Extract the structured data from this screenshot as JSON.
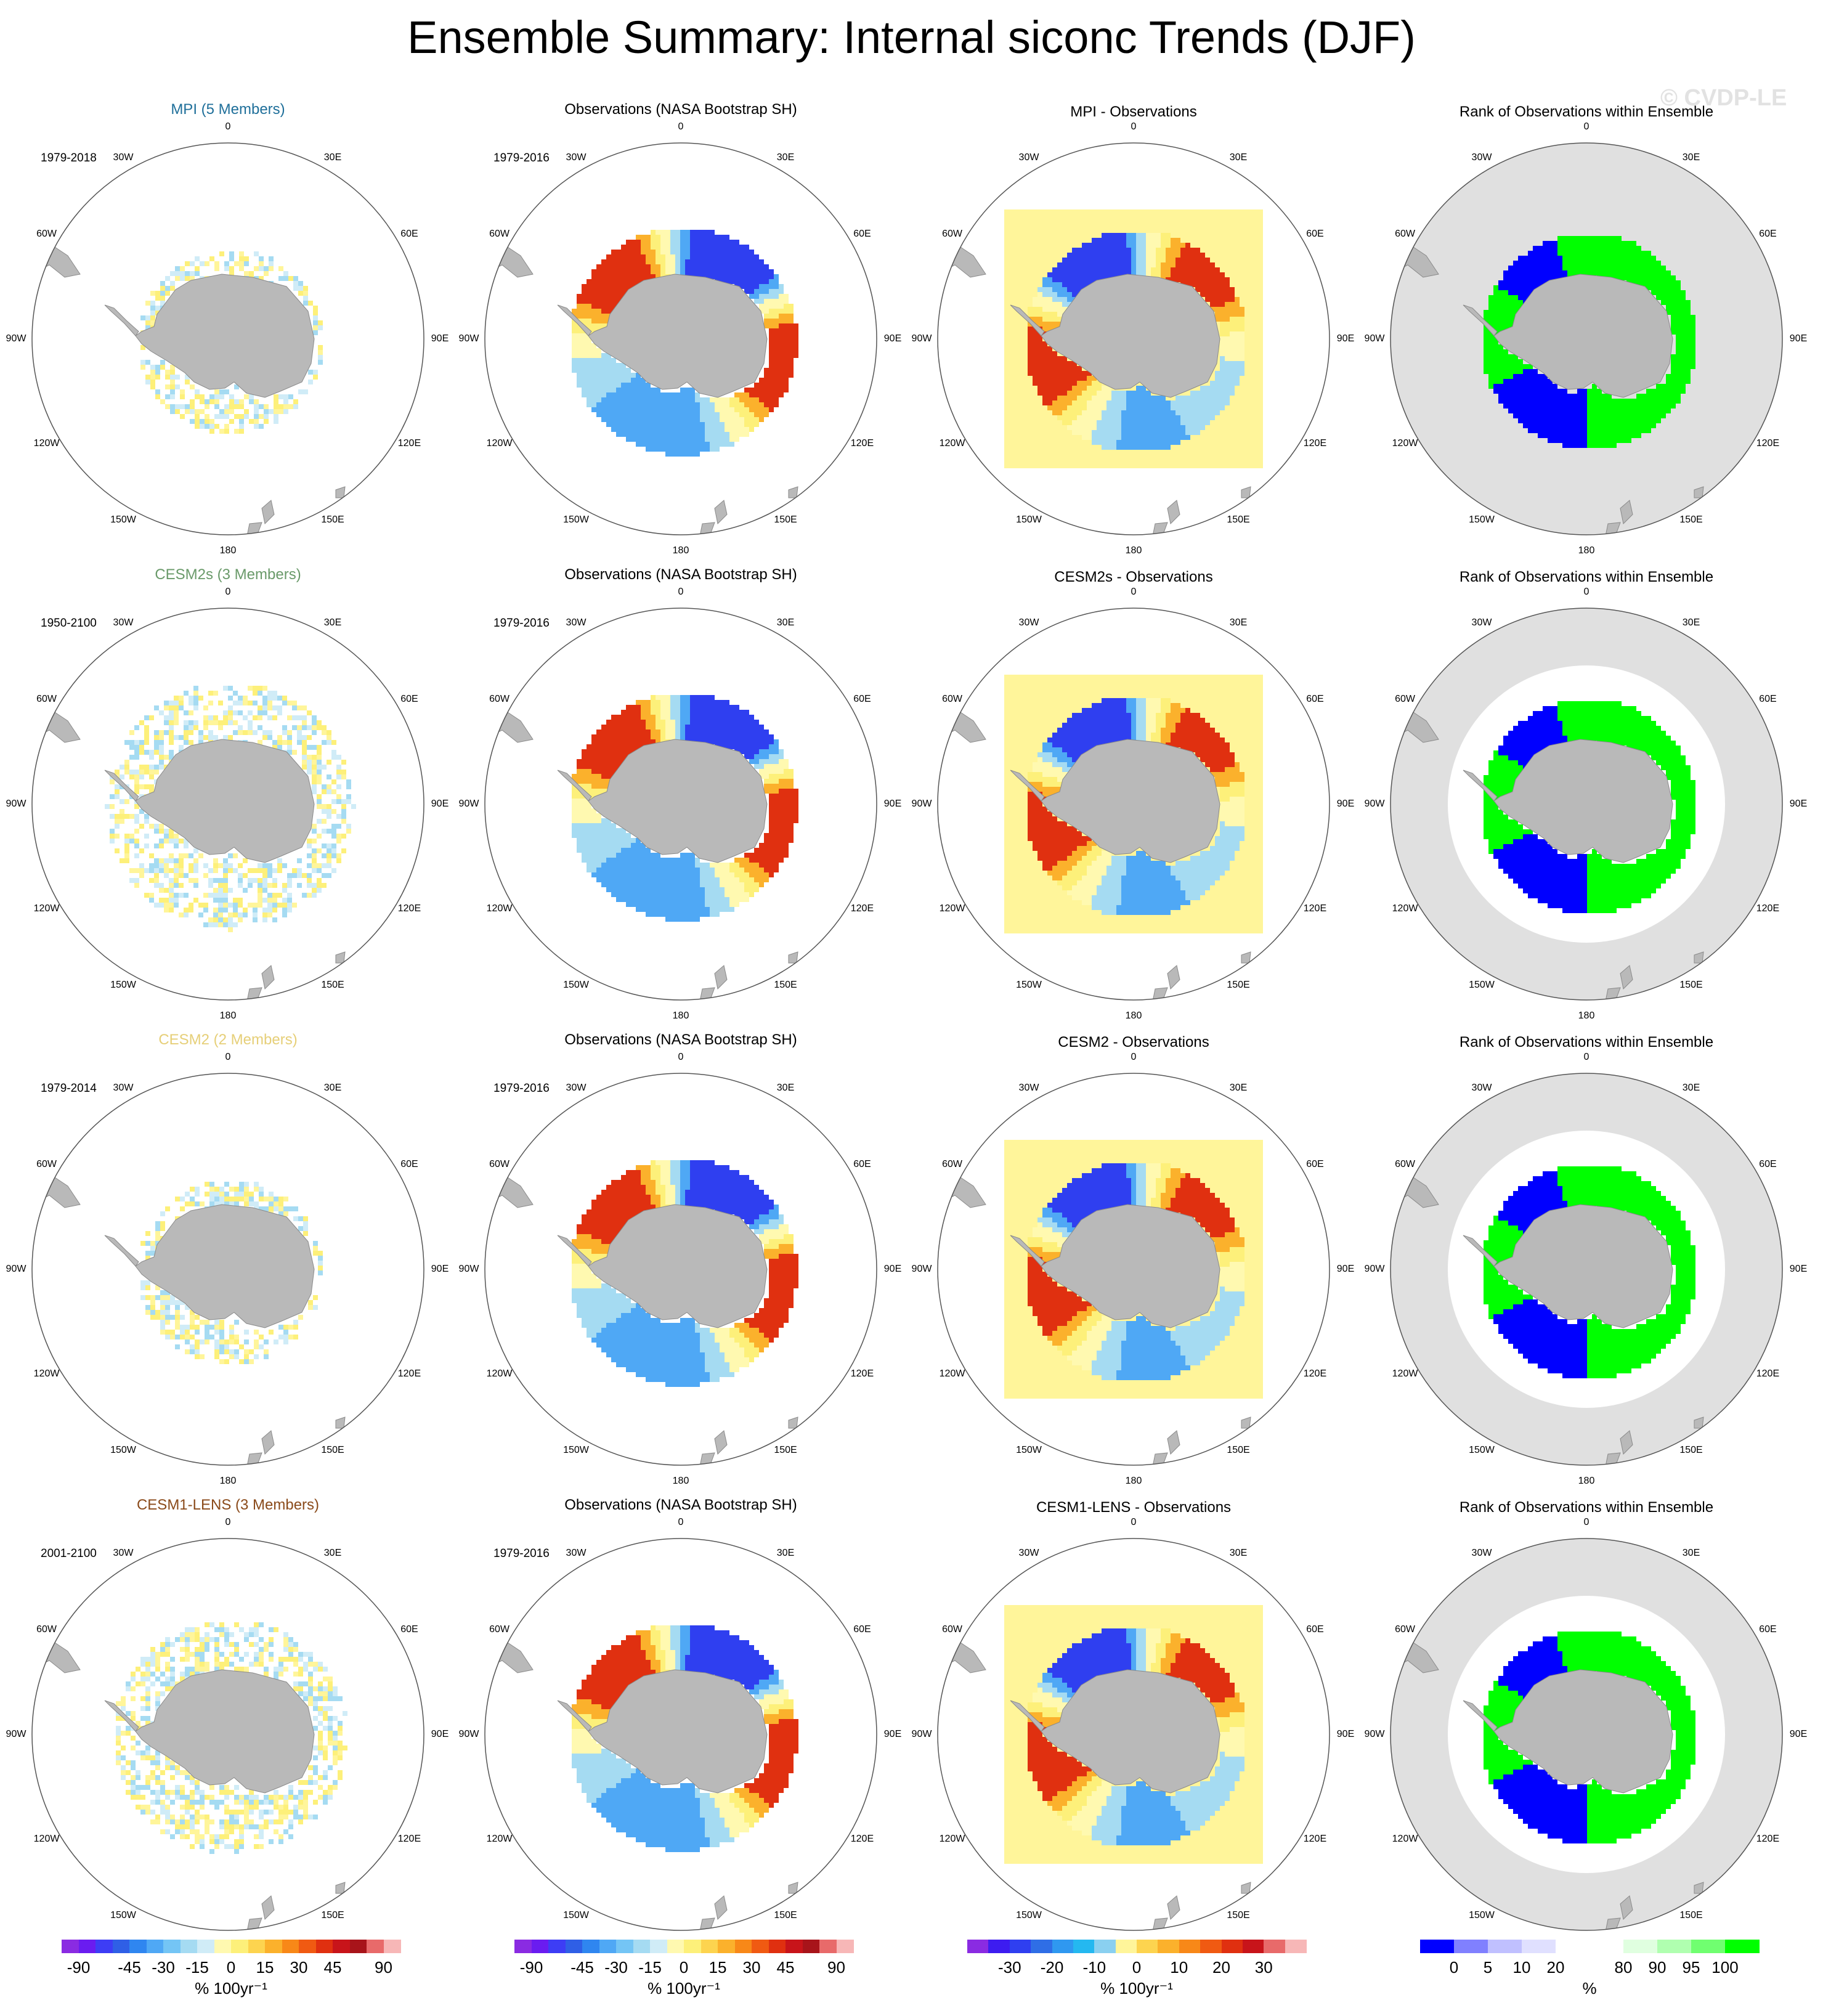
{
  "title": "Ensemble Summary: Internal siconc Trends (DJF)",
  "watermark": "© CVDP-LE",
  "lon_labels": [
    "0",
    "30E",
    "60E",
    "90E",
    "120E",
    "150E",
    "180",
    "150W",
    "120W",
    "90W",
    "60W",
    "30W"
  ],
  "colors": {
    "land": "#b9b9b9",
    "ocean_gray": "#e0e0e0",
    "rank_low": "#0000ff",
    "rank_high": "#00ff00",
    "rank_mid": "#ffffff",
    "diff_background": "#fff59a"
  },
  "rows": [
    {
      "model_title": "MPI (5 Members)",
      "model_color": "#1f6f9a",
      "model_period": "1979-2018",
      "obs_title": "Observations (NASA Bootstrap SH)",
      "obs_period": "1979-2016",
      "diff_title": "MPI - Observations",
      "rank_title": "Rank of Observations within Ensemble"
    },
    {
      "model_title": "CESM2s (3 Members)",
      "model_color": "#6a9a6a",
      "model_period": "1950-2100",
      "obs_title": "Observations (NASA Bootstrap SH)",
      "obs_period": "1979-2016",
      "diff_title": "CESM2s - Observations",
      "rank_title": "Rank of Observations within Ensemble"
    },
    {
      "model_title": "CESM2 (2 Members)",
      "model_color": "#e6cf78",
      "model_period": "1979-2014",
      "obs_title": "Observations (NASA Bootstrap SH)",
      "obs_period": "1979-2016",
      "diff_title": "CESM2 - Observations",
      "rank_title": "Rank of Observations within Ensemble"
    },
    {
      "model_title": "CESM1-LENS (3 Members)",
      "model_color": "#8a4a1a",
      "model_period": "2001-2100",
      "obs_title": "Observations (NASA Bootstrap SH)",
      "obs_period": "1979-2016",
      "diff_title": "CESM1-LENS - Observations",
      "rank_title": "Rank of Observations within Ensemble"
    }
  ],
  "colorbars": [
    {
      "name": "model-trend",
      "colors": [
        "#8a2be2",
        "#6a1cf0",
        "#3d3df5",
        "#2f5fe6",
        "#2f86f0",
        "#4fa8f5",
        "#74c5f5",
        "#a5dbf2",
        "#d0ecf7",
        "#fff9b0",
        "#fdf07a",
        "#fdd44f",
        "#fbb12c",
        "#f88818",
        "#f05a12",
        "#e03010",
        "#c8141a",
        "#a8141a",
        "#e86a6a",
        "#f7b7b7"
      ],
      "tick_labels": [
        "-90",
        "-45",
        "-30",
        "-15",
        "0",
        "15",
        "30",
        "45",
        "90"
      ],
      "tick_positions": [
        1,
        4,
        6,
        8,
        10,
        12,
        14,
        16,
        19
      ],
      "unit": "% 100yr⁻¹"
    },
    {
      "name": "obs-trend",
      "colors": [
        "#8a2be2",
        "#6a1cf0",
        "#3d3df5",
        "#2f5fe6",
        "#2f86f0",
        "#4fa8f5",
        "#74c5f5",
        "#a5dbf2",
        "#d0ecf7",
        "#fff9b0",
        "#fdf07a",
        "#fdd44f",
        "#fbb12c",
        "#f88818",
        "#f05a12",
        "#e03010",
        "#c8141a",
        "#a8141a",
        "#e86a6a",
        "#f7b7b7"
      ],
      "tick_labels": [
        "-90",
        "-45",
        "-30",
        "-15",
        "0",
        "15",
        "30",
        "45",
        "90"
      ],
      "tick_positions": [
        1,
        4,
        6,
        8,
        10,
        12,
        14,
        16,
        19
      ],
      "unit": "% 100yr⁻¹"
    },
    {
      "name": "difference",
      "colors": [
        "#8a2be2",
        "#3d1cf0",
        "#2f3ff0",
        "#2f6ee6",
        "#2f98f0",
        "#24b8f0",
        "#8ad0f0",
        "#fff59a",
        "#fdd44f",
        "#fbb12c",
        "#f88818",
        "#f05a12",
        "#e03010",
        "#c8141a",
        "#e86a6a",
        "#f7b7b7"
      ],
      "tick_labels": [
        "-30",
        "-20",
        "-10",
        "0",
        "10",
        "20",
        "30"
      ],
      "tick_positions": [
        2,
        4,
        6,
        8,
        10,
        12,
        14
      ],
      "unit": "% 100yr⁻¹"
    },
    {
      "name": "rank",
      "colors": [
        "#0000ff",
        "#8080ff",
        "#c0c0ff",
        "#e0e0ff",
        "#ffffff",
        "#ffffff",
        "#e0ffe0",
        "#b0ffb0",
        "#70ff70",
        "#00ff00"
      ],
      "tick_labels": [
        "0",
        "5",
        "10",
        "20",
        "80",
        "90",
        "95",
        "100"
      ],
      "tick_positions": [
        1,
        2,
        3,
        4,
        6,
        7,
        8,
        9
      ],
      "unit": "%"
    }
  ]
}
